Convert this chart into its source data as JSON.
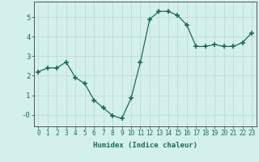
{
  "x": [
    0,
    1,
    2,
    3,
    4,
    5,
    6,
    7,
    8,
    9,
    10,
    11,
    12,
    13,
    14,
    15,
    16,
    17,
    18,
    19,
    20,
    21,
    22,
    23
  ],
  "y": [
    2.2,
    2.4,
    2.4,
    2.7,
    1.9,
    1.6,
    0.75,
    0.35,
    -0.05,
    -0.2,
    0.85,
    2.7,
    4.9,
    5.3,
    5.3,
    5.1,
    4.6,
    3.5,
    3.5,
    3.6,
    3.5,
    3.5,
    3.7,
    4.2
  ],
  "line_color": "#1a6b5a",
  "marker": "+",
  "marker_size": 4,
  "bg_color": "#d4f0ec",
  "grid_color": "#c0ddd8",
  "xlabel": "Humidex (Indice chaleur)",
  "xlim": [
    -0.5,
    23.5
  ],
  "ylim": [
    -0.6,
    5.8
  ],
  "yticks": [
    0,
    1,
    2,
    3,
    4,
    5
  ],
  "ytick_labels": [
    "-0",
    "1",
    "2",
    "3",
    "4",
    "5"
  ],
  "xticks": [
    0,
    1,
    2,
    3,
    4,
    5,
    6,
    7,
    8,
    9,
    10,
    11,
    12,
    13,
    14,
    15,
    16,
    17,
    18,
    19,
    20,
    21,
    22,
    23
  ],
  "figsize": [
    3.2,
    2.0
  ],
  "dpi": 100
}
